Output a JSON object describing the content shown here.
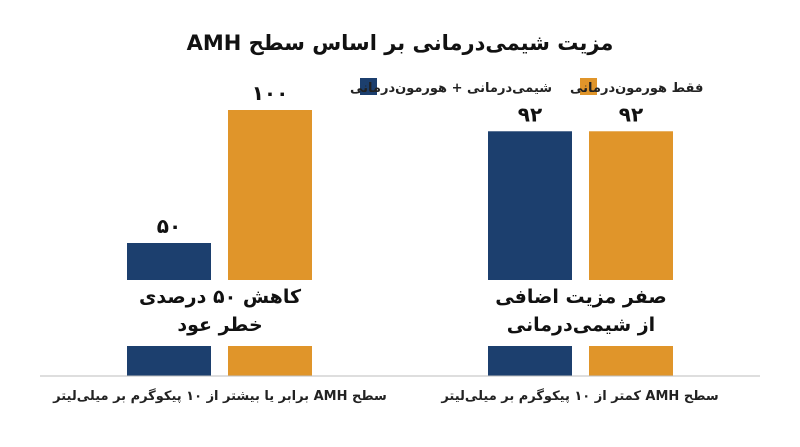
{
  "chart_data": {
    "type": "bar",
    "title": "مزیت شیمی‌درمانی بر اساس سطح AMH",
    "categories": [
      "سطح AMH کمتر از ۱۰ پیکوگرم بر میلی‌لیتر",
      "سطح AMH برابر یا بیشتر از ۱۰ پیکوگرم بر میلی‌لیتر"
    ],
    "series": [
      {
        "name": "فقط هورمون‌درمانی",
        "color": "#E0952A",
        "values": [
          92,
          100
        ],
        "labels": [
          "۹۲",
          "۱۰۰"
        ]
      },
      {
        "name": "شیمی‌درمانی + هورمون‌درمانی",
        "color": "#1C3F6E",
        "values": [
          92,
          50
        ],
        "labels": [
          "۹۲",
          "۵۰"
        ]
      }
    ],
    "annotations": [
      [
        "صفر مزیت اضافی",
        "از شیمی‌درمانی"
      ],
      [
        "کاهش ۵۰ درصدی",
        "خطر عود"
      ]
    ],
    "xlabel": "",
    "ylabel": "",
    "ylim": [
      0,
      100
    ],
    "grid": false,
    "legend_position": "top"
  }
}
